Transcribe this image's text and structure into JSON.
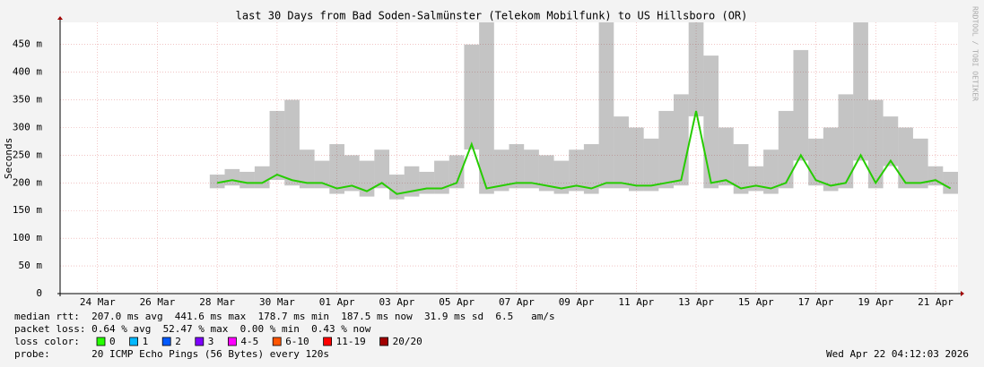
{
  "chart_data": {
    "type": "line",
    "title": "last 30 Days from Bad Soden-Salmünster (Telekom Mobilfunk) to US Hillsboro (OR)",
    "y_label": "Seconds",
    "watermark": "RRDTOOL / TOBI OETIKER",
    "categories": [
      null,
      null,
      "24 Mar",
      null,
      null,
      null,
      "26 Mar",
      null,
      null,
      null,
      "28 Mar",
      null,
      null,
      null,
      "30 Mar",
      null,
      null,
      null,
      "01 Apr",
      null,
      null,
      null,
      "03 Apr",
      null,
      null,
      null,
      "05 Apr",
      null,
      null,
      null,
      "07 Apr",
      null,
      null,
      null,
      "09 Apr",
      null,
      null,
      null,
      "11 Apr",
      null,
      null,
      null,
      "13 Apr",
      null,
      null,
      null,
      "15 Apr",
      null,
      null,
      null,
      "17 Apr",
      null,
      null,
      null,
      "19 Apr",
      null,
      null,
      null,
      "21 Apr",
      null
    ],
    "values": [
      null,
      null,
      null,
      null,
      null,
      null,
      null,
      null,
      null,
      null,
      0.2,
      0.205,
      0.2,
      0.2,
      0.215,
      0.205,
      0.2,
      0.2,
      0.19,
      0.195,
      0.185,
      0.2,
      0.18,
      0.185,
      0.19,
      0.19,
      0.2,
      0.27,
      0.19,
      0.195,
      0.2,
      0.2,
      0.195,
      0.19,
      0.195,
      0.19,
      0.2,
      0.2,
      0.195,
      0.195,
      0.2,
      0.205,
      0.33,
      0.2,
      0.205,
      0.19,
      0.195,
      0.19,
      0.2,
      0.25,
      0.205,
      0.195,
      0.2,
      0.25,
      0.2,
      0.24,
      0.2,
      0.2,
      0.205,
      0.19
    ],
    "range_max": [
      null,
      null,
      null,
      null,
      null,
      null,
      null,
      null,
      null,
      null,
      0.215,
      0.225,
      0.22,
      0.23,
      0.33,
      0.35,
      0.26,
      0.24,
      0.27,
      0.25,
      0.24,
      0.26,
      0.215,
      0.23,
      0.22,
      0.24,
      0.25,
      0.45,
      0.49,
      0.26,
      0.27,
      0.26,
      0.25,
      0.24,
      0.26,
      0.27,
      0.49,
      0.32,
      0.3,
      0.28,
      0.33,
      0.36,
      0.49,
      0.43,
      0.3,
      0.27,
      0.23,
      0.26,
      0.33,
      0.44,
      0.28,
      0.3,
      0.36,
      0.49,
      0.35,
      0.32,
      0.3,
      0.28,
      0.23,
      0.22
    ],
    "color": "#26cc00",
    "smoke_color": "#555555",
    "grid": true,
    "ylim": [
      0,
      0.49
    ],
    "yticks": [
      0,
      {
        "value": 0.05,
        "label": "50 m"
      },
      {
        "value": 0.1,
        "label": "100 m"
      },
      {
        "value": 0.15,
        "label": "150 m"
      },
      {
        "value": 0.2,
        "label": "200 m"
      },
      {
        "value": 0.25,
        "label": "250 m"
      },
      {
        "value": 0.3,
        "label": "300 m"
      },
      {
        "value": 0.35,
        "label": "350 m"
      },
      {
        "value": 0.4,
        "label": "400 m"
      },
      {
        "value": 0.45,
        "label": "450 m"
      }
    ],
    "stats": [
      "median rtt:  207.0 ms avg  441.6 ms max  178.7 ms min  187.5 ms now  31.9 ms sd  6.5   am/s",
      "packet loss: 0.64 % avg  52.47 % max  0.00 % min  0.43 % now"
    ],
    "loss_color_label": "loss color:",
    "loss_legend": [
      {
        "label": "0",
        "color": "#26ff00"
      },
      {
        "label": "1",
        "color": "#00b8ff"
      },
      {
        "label": "2",
        "color": "#0059ff"
      },
      {
        "label": "3",
        "color": "#7e00ff"
      },
      {
        "label": "4-5",
        "color": "#ff00ff"
      },
      {
        "label": "6-10",
        "color": "#ff5500"
      },
      {
        "label": "11-19",
        "color": "#ff0000"
      },
      {
        "label": "20/20",
        "color": "#a10000"
      }
    ],
    "probe": "probe:       20 ICMP Echo Pings (56 Bytes) every 120s",
    "timestamp": "Wed Apr 22 04:12:03 2026"
  }
}
